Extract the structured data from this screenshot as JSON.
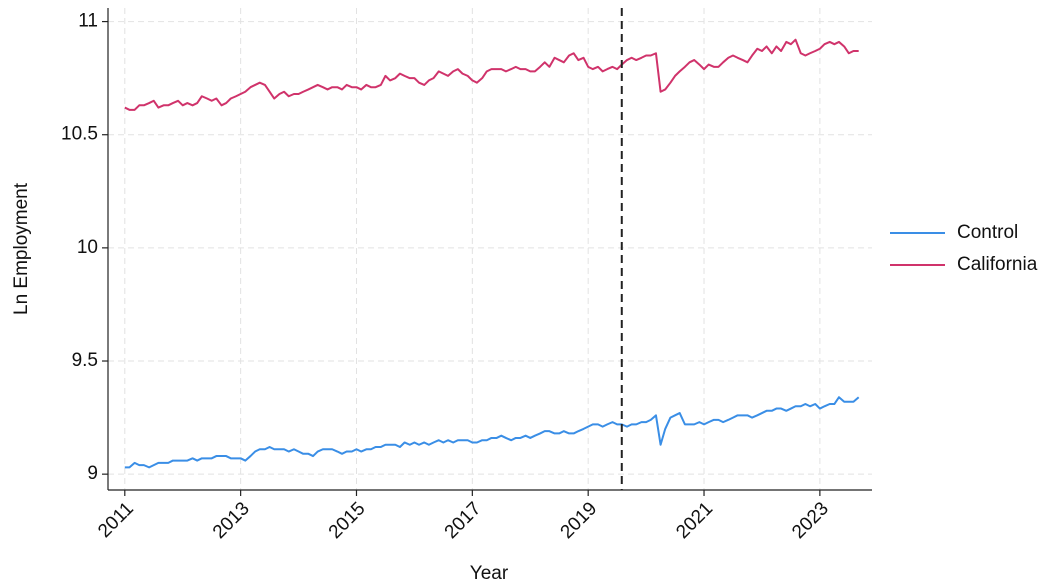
{
  "chart_data": {
    "type": "line",
    "x_label": "Year",
    "y_label": "Ln Employment",
    "xlim": [
      2010.71,
      2023.9
    ],
    "ylim": [
      8.93,
      11.06
    ],
    "xticks": [
      2011,
      2013,
      2015,
      2017,
      2019,
      2021,
      2023
    ],
    "yticks": [
      9,
      9.5,
      10,
      10.5,
      11
    ],
    "grid": true,
    "legend": "right",
    "vline": 2019.58,
    "x": [
      2011.0,
      2011.08,
      2011.17,
      2011.25,
      2011.33,
      2011.42,
      2011.5,
      2011.58,
      2011.67,
      2011.75,
      2011.83,
      2011.92,
      2012.0,
      2012.08,
      2012.17,
      2012.25,
      2012.33,
      2012.42,
      2012.5,
      2012.58,
      2012.67,
      2012.75,
      2012.83,
      2012.92,
      2013.0,
      2013.08,
      2013.17,
      2013.25,
      2013.33,
      2013.42,
      2013.5,
      2013.58,
      2013.67,
      2013.75,
      2013.83,
      2013.92,
      2014.0,
      2014.08,
      2014.17,
      2014.25,
      2014.33,
      2014.42,
      2014.5,
      2014.58,
      2014.67,
      2014.75,
      2014.83,
      2014.92,
      2015.0,
      2015.08,
      2015.17,
      2015.25,
      2015.33,
      2015.42,
      2015.5,
      2015.58,
      2015.67,
      2015.75,
      2015.83,
      2015.92,
      2016.0,
      2016.08,
      2016.17,
      2016.25,
      2016.33,
      2016.42,
      2016.5,
      2016.58,
      2016.67,
      2016.75,
      2016.83,
      2016.92,
      2017.0,
      2017.08,
      2017.17,
      2017.25,
      2017.33,
      2017.42,
      2017.5,
      2017.58,
      2017.67,
      2017.75,
      2017.83,
      2017.92,
      2018.0,
      2018.08,
      2018.17,
      2018.25,
      2018.33,
      2018.42,
      2018.5,
      2018.58,
      2018.67,
      2018.75,
      2018.83,
      2018.92,
      2019.0,
      2019.08,
      2019.17,
      2019.25,
      2019.33,
      2019.42,
      2019.5,
      2019.58,
      2019.67,
      2019.75,
      2019.83,
      2019.92,
      2020.0,
      2020.08,
      2020.17,
      2020.25,
      2020.33,
      2020.42,
      2020.5,
      2020.58,
      2020.67,
      2020.75,
      2020.83,
      2020.92,
      2021.0,
      2021.08,
      2021.17,
      2021.25,
      2021.33,
      2021.42,
      2021.5,
      2021.58,
      2021.67,
      2021.75,
      2021.83,
      2021.92,
      2022.0,
      2022.08,
      2022.17,
      2022.25,
      2022.33,
      2022.42,
      2022.5,
      2022.58,
      2022.67,
      2022.75,
      2022.83,
      2022.92,
      2023.0,
      2023.08,
      2023.17,
      2023.25,
      2023.33,
      2023.42,
      2023.5,
      2023.58,
      2023.67
    ],
    "series": [
      {
        "name": "Control",
        "color": "#3a8ee6",
        "values": [
          9.03,
          9.03,
          9.05,
          9.04,
          9.04,
          9.03,
          9.04,
          9.05,
          9.05,
          9.05,
          9.06,
          9.06,
          9.06,
          9.06,
          9.07,
          9.06,
          9.07,
          9.07,
          9.07,
          9.08,
          9.08,
          9.08,
          9.07,
          9.07,
          9.07,
          9.06,
          9.08,
          9.1,
          9.11,
          9.11,
          9.12,
          9.11,
          9.11,
          9.11,
          9.1,
          9.11,
          9.1,
          9.09,
          9.09,
          9.08,
          9.1,
          9.11,
          9.11,
          9.11,
          9.1,
          9.09,
          9.1,
          9.1,
          9.11,
          9.1,
          9.11,
          9.11,
          9.12,
          9.12,
          9.13,
          9.13,
          9.13,
          9.12,
          9.14,
          9.13,
          9.14,
          9.13,
          9.14,
          9.13,
          9.14,
          9.15,
          9.14,
          9.15,
          9.14,
          9.15,
          9.15,
          9.15,
          9.14,
          9.14,
          9.15,
          9.15,
          9.16,
          9.16,
          9.17,
          9.16,
          9.15,
          9.16,
          9.16,
          9.17,
          9.16,
          9.17,
          9.18,
          9.19,
          9.19,
          9.18,
          9.18,
          9.19,
          9.18,
          9.18,
          9.19,
          9.2,
          9.21,
          9.22,
          9.22,
          9.21,
          9.22,
          9.23,
          9.22,
          9.22,
          9.21,
          9.22,
          9.22,
          9.23,
          9.23,
          9.24,
          9.26,
          9.13,
          9.2,
          9.25,
          9.26,
          9.27,
          9.22,
          9.22,
          9.22,
          9.23,
          9.22,
          9.23,
          9.24,
          9.24,
          9.23,
          9.24,
          9.25,
          9.26,
          9.26,
          9.26,
          9.25,
          9.26,
          9.27,
          9.28,
          9.28,
          9.29,
          9.29,
          9.28,
          9.29,
          9.3,
          9.3,
          9.31,
          9.3,
          9.31,
          9.29,
          9.3,
          9.31,
          9.31,
          9.34,
          9.32,
          9.32,
          9.32,
          9.34
        ]
      },
      {
        "name": "California",
        "color": "#d0336b",
        "values": [
          10.62,
          10.61,
          10.61,
          10.63,
          10.63,
          10.64,
          10.65,
          10.62,
          10.63,
          10.63,
          10.64,
          10.65,
          10.63,
          10.64,
          10.63,
          10.64,
          10.67,
          10.66,
          10.65,
          10.66,
          10.63,
          10.64,
          10.66,
          10.67,
          10.68,
          10.69,
          10.71,
          10.72,
          10.73,
          10.72,
          10.69,
          10.66,
          10.68,
          10.69,
          10.67,
          10.68,
          10.68,
          10.69,
          10.7,
          10.71,
          10.72,
          10.71,
          10.7,
          10.71,
          10.71,
          10.7,
          10.72,
          10.71,
          10.71,
          10.7,
          10.72,
          10.71,
          10.71,
          10.72,
          10.76,
          10.74,
          10.75,
          10.77,
          10.76,
          10.75,
          10.75,
          10.73,
          10.72,
          10.74,
          10.75,
          10.78,
          10.77,
          10.76,
          10.78,
          10.79,
          10.77,
          10.76,
          10.74,
          10.73,
          10.75,
          10.78,
          10.79,
          10.79,
          10.79,
          10.78,
          10.79,
          10.8,
          10.79,
          10.79,
          10.78,
          10.78,
          10.8,
          10.82,
          10.8,
          10.84,
          10.83,
          10.82,
          10.85,
          10.86,
          10.83,
          10.84,
          10.8,
          10.79,
          10.8,
          10.78,
          10.79,
          10.8,
          10.79,
          10.81,
          10.83,
          10.84,
          10.83,
          10.84,
          10.85,
          10.85,
          10.86,
          10.69,
          10.7,
          10.73,
          10.76,
          10.78,
          10.8,
          10.82,
          10.83,
          10.81,
          10.79,
          10.81,
          10.8,
          10.8,
          10.82,
          10.84,
          10.85,
          10.84,
          10.83,
          10.82,
          10.85,
          10.88,
          10.87,
          10.89,
          10.86,
          10.89,
          10.87,
          10.91,
          10.9,
          10.92,
          10.86,
          10.85,
          10.86,
          10.87,
          10.88,
          10.9,
          10.91,
          10.9,
          10.91,
          10.89,
          10.86,
          10.87,
          10.87
        ]
      }
    ]
  }
}
